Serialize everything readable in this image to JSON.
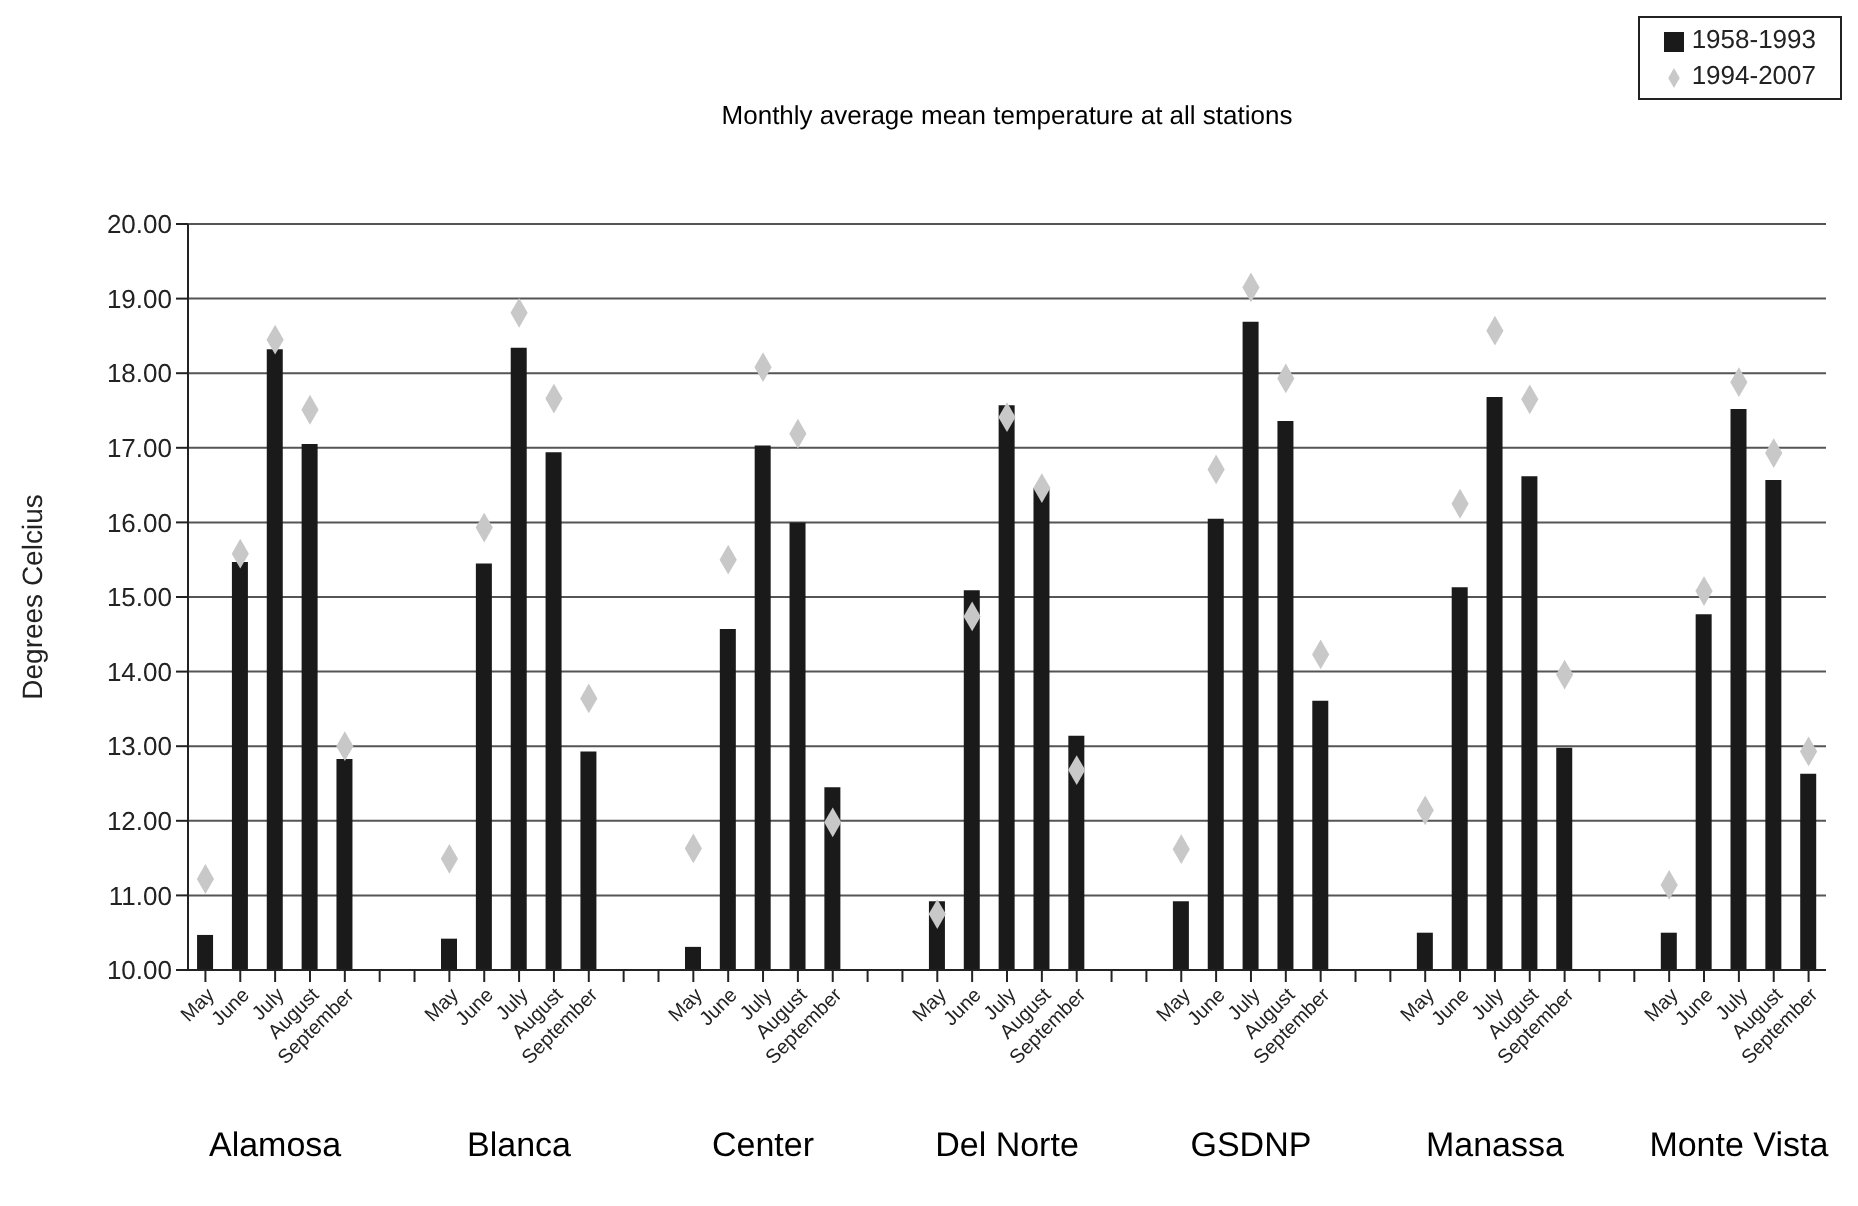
{
  "chart_data": {
    "type": "bar",
    "title": "Monthly average mean temperature at all stations",
    "ylabel": "Degrees Celcius",
    "categories": [
      "May",
      "June",
      "July",
      "August",
      "September",
      null,
      null,
      "May",
      "June",
      "July",
      "August",
      "September",
      null,
      null,
      "May",
      "June",
      "July",
      "August",
      "September",
      null,
      null,
      "May",
      "June",
      "July",
      "August",
      "September",
      null,
      null,
      "May",
      "June",
      "July",
      "August",
      "September",
      null,
      null,
      "May",
      "June",
      "July",
      "August",
      "September",
      null,
      null,
      "May",
      "June",
      "July",
      "August",
      "September"
    ],
    "series": [
      {
        "name": "1958-1993",
        "color": "#1a1a1a",
        "values": [
          10.47,
          15.47,
          18.32,
          17.05,
          12.83,
          null,
          null,
          10.42,
          15.45,
          18.34,
          16.94,
          12.93,
          null,
          null,
          10.31,
          14.57,
          17.03,
          16.0,
          12.45,
          null,
          null,
          10.92,
          15.09,
          17.57,
          16.46,
          13.14,
          null,
          null,
          10.92,
          16.05,
          18.69,
          17.36,
          13.61,
          null,
          null,
          10.5,
          15.13,
          17.68,
          16.62,
          12.98,
          null,
          null,
          10.5,
          14.77,
          17.52,
          16.57,
          12.63
        ]
      },
      {
        "name": "1994-2007",
        "type": "scatter",
        "color": "#c8c8c8",
        "values": [
          11.22,
          15.58,
          18.45,
          17.51,
          13.0,
          null,
          null,
          11.49,
          15.93,
          18.81,
          17.66,
          13.64,
          null,
          null,
          11.63,
          15.5,
          18.08,
          17.19,
          11.98,
          null,
          null,
          10.75,
          14.74,
          17.41,
          16.46,
          12.68,
          null,
          null,
          11.62,
          16.71,
          19.15,
          17.93,
          14.23,
          null,
          null,
          12.14,
          16.25,
          18.57,
          17.65,
          13.96,
          null,
          null,
          11.14,
          15.08,
          17.88,
          16.93,
          12.93
        ]
      }
    ],
    "annotations": [
      "Alamosa",
      "Blanca",
      "Center",
      "Del Norte",
      "GSDNP",
      "Manassa",
      "Monte Vista"
    ],
    "ylim": [
      10,
      20
    ],
    "yticks": [
      {
        "value": 10,
        "label": "10.00"
      },
      {
        "value": 11,
        "label": "11.00"
      },
      {
        "value": 12,
        "label": "12.00"
      },
      {
        "value": 13,
        "label": "13.00"
      },
      {
        "value": 14,
        "label": "14.00"
      },
      {
        "value": 15,
        "label": "15.00"
      },
      {
        "value": 16,
        "label": "16.00"
      },
      {
        "value": 17,
        "label": "17.00"
      },
      {
        "value": 18,
        "label": "18.00"
      },
      {
        "value": 19,
        "label": "19.00"
      },
      {
        "value": 20,
        "label": "20.00"
      }
    ],
    "grid": "y",
    "legend": "top right",
    "marker": "diamond"
  }
}
